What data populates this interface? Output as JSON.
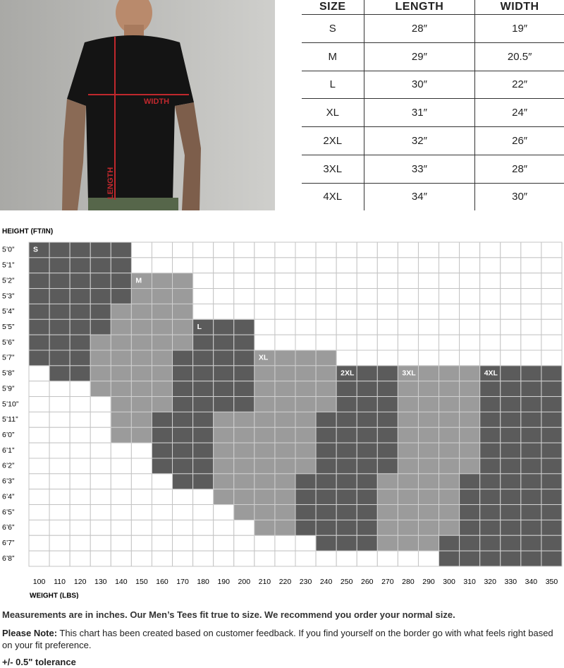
{
  "photo": {
    "width_label": "WIDTH",
    "length_label": "LENGTH"
  },
  "table": {
    "header": [
      "SIZE",
      "LENGTH",
      "WIDTH"
    ],
    "rows": [
      [
        "S",
        "28″",
        "19″"
      ],
      [
        "M",
        "29″",
        "20.5″"
      ],
      [
        "L",
        "30″",
        "22″"
      ],
      [
        "XL",
        "31″",
        "24″"
      ],
      [
        "2XL",
        "32″",
        "26″"
      ],
      [
        "3XL",
        "33″",
        "28″"
      ],
      [
        "4XL",
        "34″",
        "30″"
      ]
    ]
  },
  "grid": {
    "y_title": "HEIGHT (FT/IN)",
    "x_title": "WEIGHT (LBS)",
    "heights": [
      "5’0”",
      "5’1”",
      "5’2”",
      "5’3”",
      "5’4”",
      "5’5”",
      "5’6”",
      "5’7”",
      "5’8”",
      "5’9”",
      "5’10”",
      "5’11”",
      "6’0”",
      "6’1”",
      "6’2”",
      "6’3”",
      "6’4”",
      "6’5”",
      "6’6”",
      "6’7”",
      "6’8”"
    ],
    "weights": [
      100,
      110,
      120,
      130,
      140,
      150,
      160,
      170,
      180,
      190,
      200,
      210,
      220,
      230,
      240,
      250,
      260,
      270,
      280,
      290,
      300,
      310,
      320,
      330,
      340,
      350
    ],
    "regions": [
      {
        "size": "S",
        "color": "#5b5b5b",
        "start_row": 0,
        "spans": [
          [
            100,
            140
          ],
          [
            100,
            140
          ],
          [
            100,
            140
          ],
          [
            100,
            140
          ],
          [
            100,
            130
          ],
          [
            100,
            130
          ],
          [
            100,
            120
          ],
          [
            100,
            120
          ],
          [
            110,
            120
          ]
        ]
      },
      {
        "size": "M",
        "color": "#9b9b9b",
        "start_row": 2,
        "spans": [
          [
            150,
            170
          ],
          [
            150,
            170
          ],
          [
            140,
            170
          ],
          [
            140,
            170
          ],
          [
            130,
            170
          ],
          [
            130,
            160
          ],
          [
            130,
            160
          ],
          [
            130,
            160
          ],
          [
            140,
            160
          ],
          [
            140,
            150
          ],
          [
            140,
            150
          ]
        ]
      },
      {
        "size": "L",
        "color": "#5b5b5b",
        "start_row": 5,
        "spans": [
          [
            180,
            200
          ],
          [
            180,
            200
          ],
          [
            170,
            200
          ],
          [
            170,
            200
          ],
          [
            170,
            200
          ],
          [
            170,
            200
          ],
          [
            160,
            180
          ],
          [
            160,
            180
          ],
          [
            160,
            180
          ],
          [
            160,
            180
          ],
          [
            170,
            180
          ]
        ]
      },
      {
        "size": "XL",
        "color": "#9b9b9b",
        "start_row": 7,
        "spans": [
          [
            210,
            240
          ],
          [
            210,
            240
          ],
          [
            210,
            240
          ],
          [
            210,
            240
          ],
          [
            190,
            230
          ],
          [
            190,
            230
          ],
          [
            190,
            230
          ],
          [
            190,
            230
          ],
          [
            190,
            220
          ],
          [
            190,
            220
          ],
          [
            200,
            220
          ],
          [
            210,
            220
          ]
        ]
      },
      {
        "size": "2XL",
        "color": "#5b5b5b",
        "start_row": 8,
        "spans": [
          [
            250,
            270
          ],
          [
            250,
            270
          ],
          [
            250,
            270
          ],
          [
            240,
            270
          ],
          [
            240,
            270
          ],
          [
            240,
            270
          ],
          [
            240,
            270
          ],
          [
            230,
            260
          ],
          [
            230,
            260
          ],
          [
            230,
            260
          ],
          [
            230,
            260
          ],
          [
            240,
            260
          ]
        ]
      },
      {
        "size": "3XL",
        "color": "#9b9b9b",
        "start_row": 8,
        "spans": [
          [
            280,
            310
          ],
          [
            280,
            310
          ],
          [
            280,
            310
          ],
          [
            280,
            310
          ],
          [
            280,
            310
          ],
          [
            280,
            310
          ],
          [
            280,
            310
          ],
          [
            270,
            300
          ],
          [
            270,
            300
          ],
          [
            270,
            300
          ],
          [
            270,
            300
          ],
          [
            270,
            290
          ]
        ]
      },
      {
        "size": "4XL",
        "color": "#5b5b5b",
        "start_row": 8,
        "spans": [
          [
            320,
            350
          ],
          [
            320,
            350
          ],
          [
            320,
            350
          ],
          [
            320,
            350
          ],
          [
            320,
            350
          ],
          [
            320,
            350
          ],
          [
            320,
            350
          ],
          [
            310,
            350
          ],
          [
            310,
            350
          ],
          [
            310,
            350
          ],
          [
            310,
            350
          ],
          [
            300,
            350
          ],
          [
            300,
            350
          ]
        ]
      }
    ]
  },
  "notes": {
    "line1": "Measurements are in inches. Our Men’s Tees fit true to size. We recommend you order your normal size.",
    "note_label": "Please Note:",
    "note_text": " This chart has been created based on customer feedback. If you find yourself on the border go with what feels right based on your fit preference.",
    "tolerance": "+/- 0.5\" tolerance"
  }
}
